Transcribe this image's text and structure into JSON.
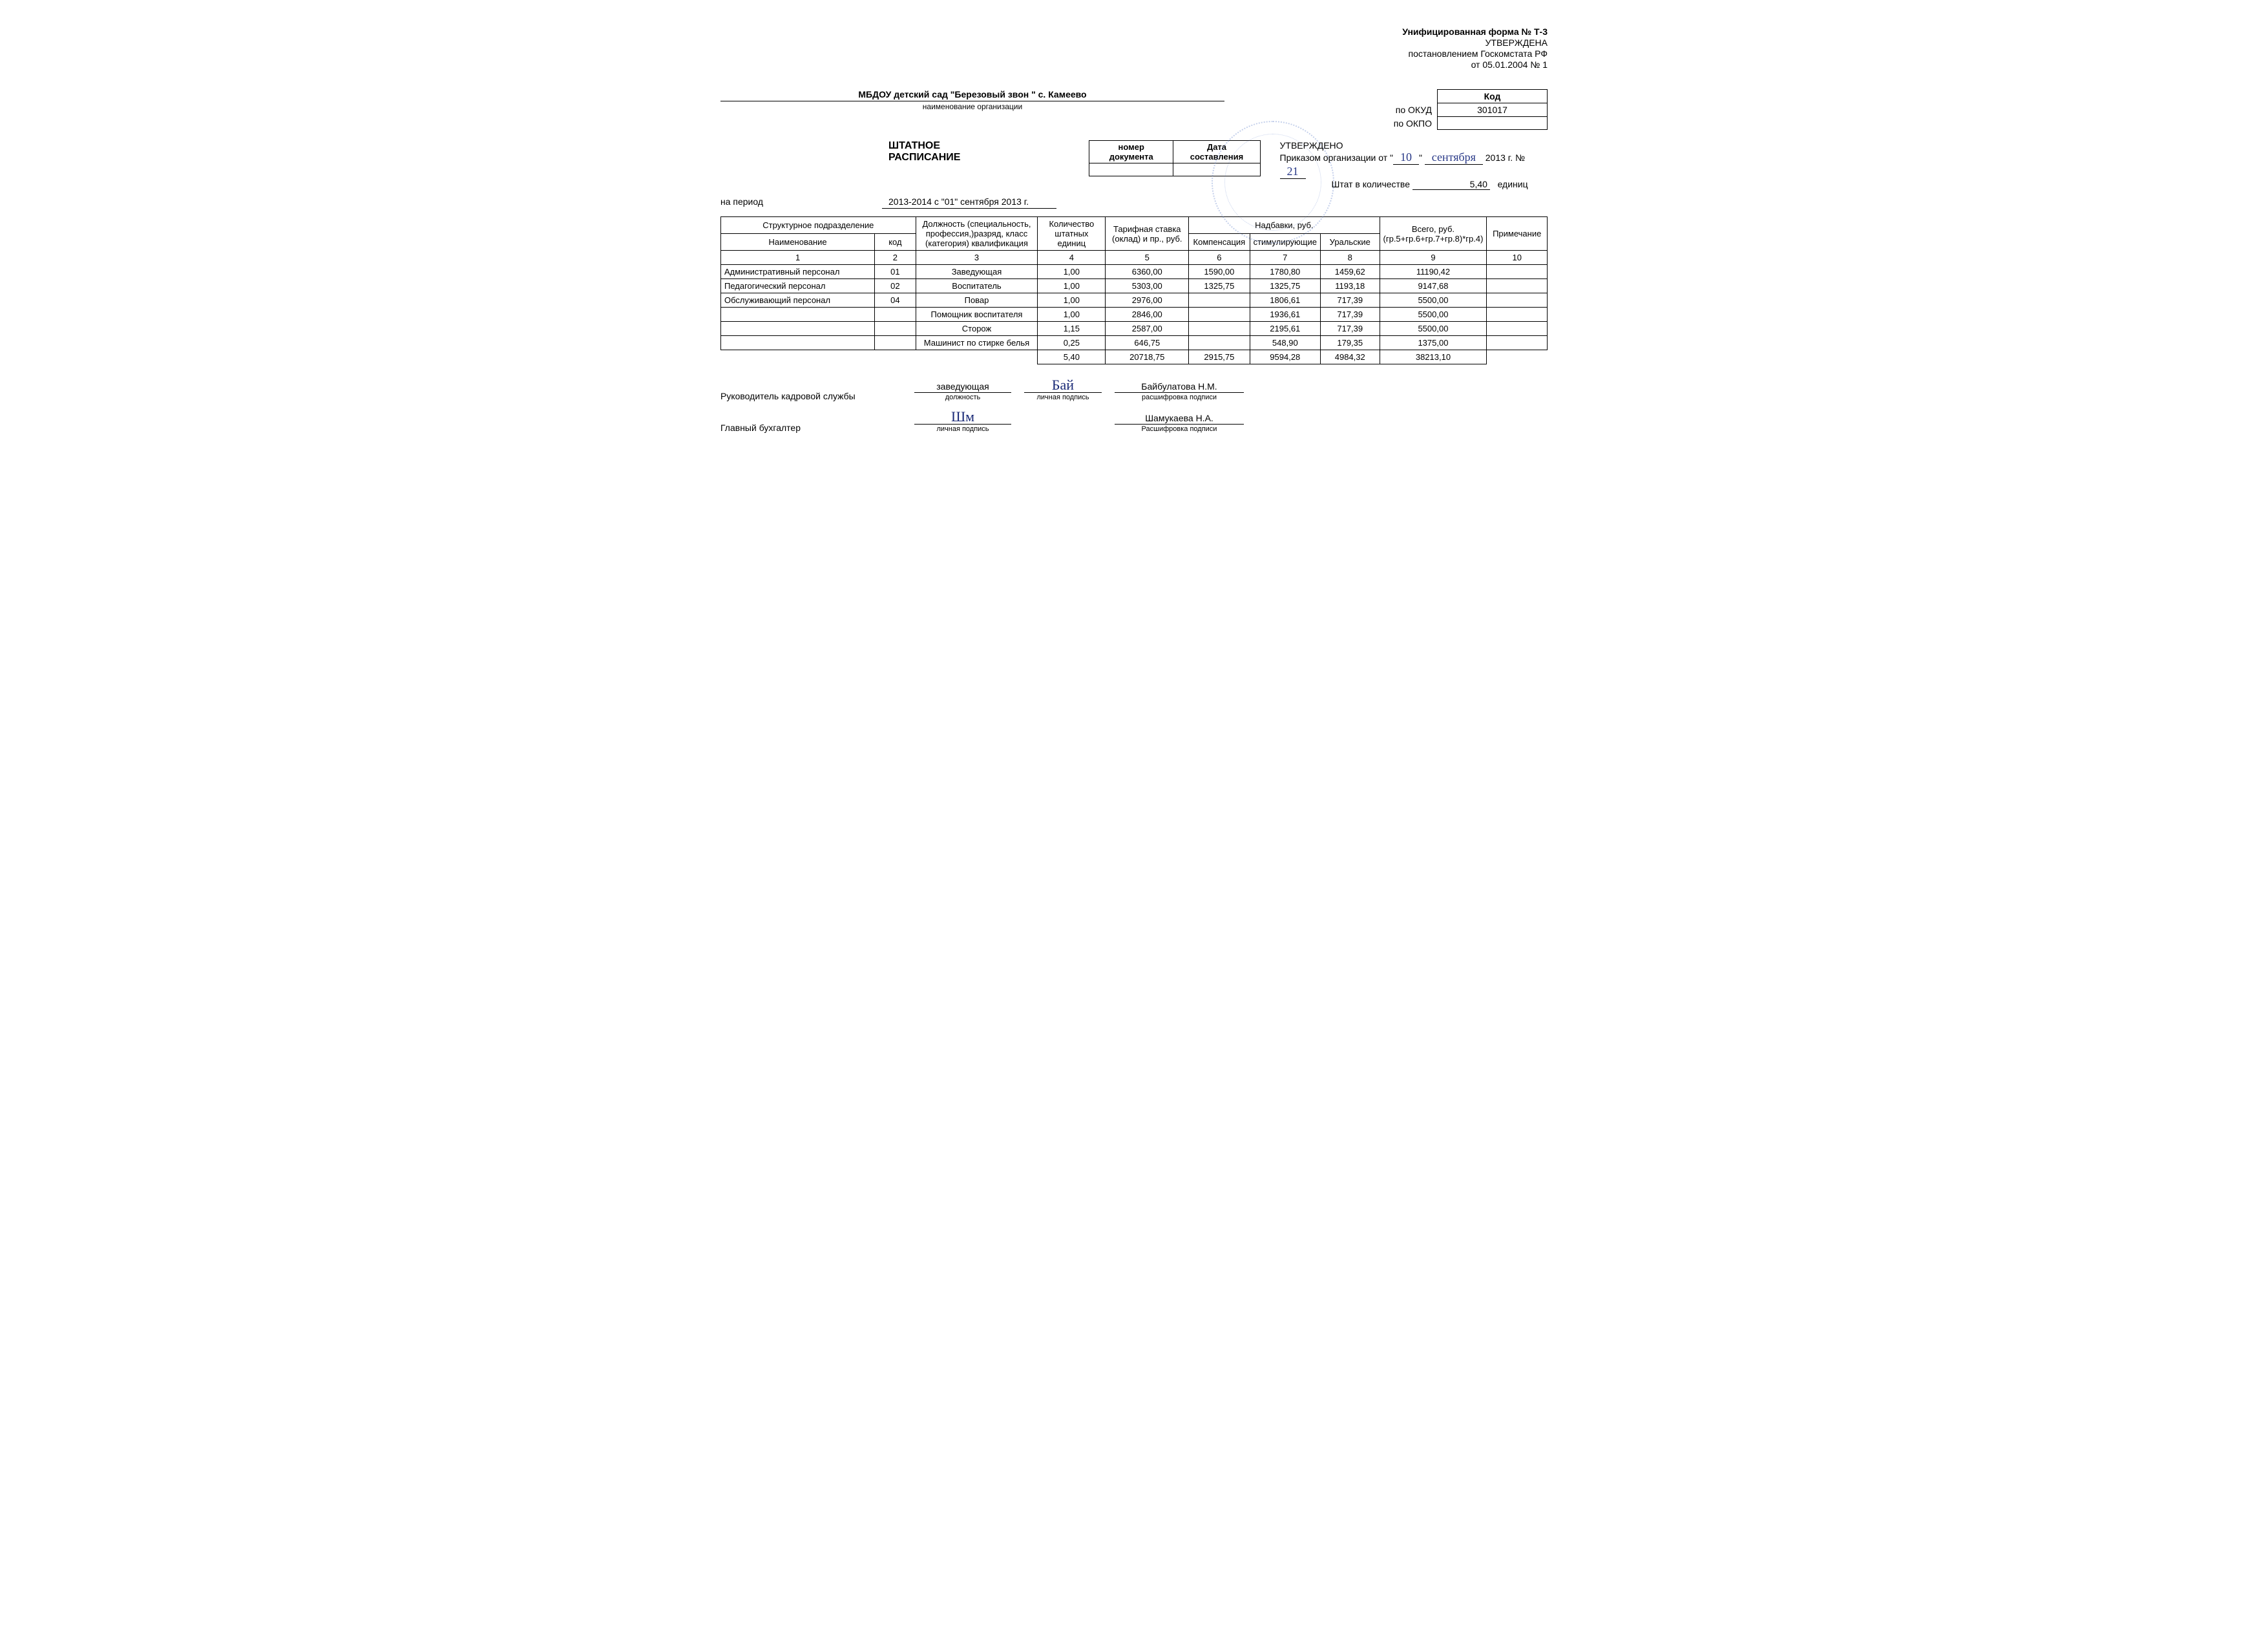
{
  "form_header": {
    "title": "Унифицированная форма № Т-3",
    "approved": "УТВЕРЖДЕНА",
    "decree": "постановлением Госкомстата РФ",
    "date": "от 05.01.2004 № 1"
  },
  "codes": {
    "header": "Код",
    "okud_label": "по ОКУД",
    "okud_value": "301017",
    "okpo_label": "по ОКПО",
    "okpo_value": ""
  },
  "organization": {
    "name": "МБДОУ детский сад  \"Березовый звон \" с. Камеево",
    "caption": "наименование организации"
  },
  "document": {
    "title": "ШТАТНОЕ РАСПИСАНИЕ",
    "meta_headers": {
      "num": "номер документа",
      "date": "Дата составления"
    },
    "meta_values": {
      "num": "",
      "date": ""
    }
  },
  "approval": {
    "approved": "УТВЕРЖДЕНО",
    "order_prefix": "Приказом организации от \"",
    "order_day": "10",
    "order_mid": "\" ",
    "order_month": "сентября",
    "order_year": " 2013 г.   №",
    "order_no": "21",
    "staff_prefix": "Штат в количестве",
    "staff_qty": "5,40",
    "staff_suffix": "единиц"
  },
  "period": {
    "label": "на период",
    "value": "2013-2014  с \"01\" сентября 2013 г."
  },
  "table": {
    "headers": {
      "struct": "Структурное подразделение",
      "name": "Наименование",
      "code": "код",
      "position": "Должность (специальность, профессия,)разряд, класс (категория) квалификация",
      "qty": "Количество штатных единиц",
      "rate": "Тарифная ставка (оклад) и пр., руб.",
      "allow": "Надбавки, руб.",
      "comp": "Компенсация",
      "stim": "стимулирующие",
      "ural": "Уральские",
      "total": "Всего, руб. (гр.5+гр.6+гр.7+гр.8)*гр.4)",
      "note": "Примечание"
    },
    "colnums": [
      "1",
      "2",
      "3",
      "4",
      "5",
      "6",
      "7",
      "8",
      "9",
      "10"
    ],
    "rows": [
      {
        "name": "Административный персонал",
        "code": "01",
        "pos": "Заведующая",
        "qty": "1,00",
        "rate": "6360,00",
        "comp": "1590,00",
        "stim": "1780,80",
        "ural": "1459,62",
        "total": "11190,42",
        "note": ""
      },
      {
        "name": "Педагогический персонал",
        "code": "02",
        "pos": "Воспитатель",
        "qty": "1,00",
        "rate": "5303,00",
        "comp": "1325,75",
        "stim": "1325,75",
        "ural": "1193,18",
        "total": "9147,68",
        "note": ""
      },
      {
        "name": "Обслуживающий персонал",
        "code": "04",
        "pos": "Повар",
        "qty": "1,00",
        "rate": "2976,00",
        "comp": "",
        "stim": "1806,61",
        "ural": "717,39",
        "total": "5500,00",
        "note": ""
      },
      {
        "name": "",
        "code": "",
        "pos": "Помощник воспитателя",
        "qty": "1,00",
        "rate": "2846,00",
        "comp": "",
        "stim": "1936,61",
        "ural": "717,39",
        "total": "5500,00",
        "note": ""
      },
      {
        "name": "",
        "code": "",
        "pos": "Сторож",
        "qty": "1,15",
        "rate": "2587,00",
        "comp": "",
        "stim": "2195,61",
        "ural": "717,39",
        "total": "5500,00",
        "note": ""
      },
      {
        "name": "",
        "code": "",
        "pos": "Машинист по стирке белья",
        "qty": "0,25",
        "rate": "646,75",
        "comp": "",
        "stim": "548,90",
        "ural": "179,35",
        "total": "1375,00",
        "note": ""
      }
    ],
    "totals": {
      "qty": "5,40",
      "rate": "20718,75",
      "comp": "2915,75",
      "stim": "9594,28",
      "ural": "4984,32",
      "total": "38213,10"
    }
  },
  "signatures": {
    "hr": {
      "label": "Руководитель кадровой службы",
      "position": "заведующая",
      "position_caption": "должность",
      "sig_caption": "личная подпись",
      "name": "Байбулатова Н.М.",
      "name_caption": "расшифровка подписи",
      "sig_mark": "Бай"
    },
    "acc": {
      "label": "Главный бухгалтер",
      "sig_caption": "личная подпись",
      "name": "Шамукаева Н.А.",
      "name_caption": "Расшифровка подписи",
      "sig_mark": "Шм"
    }
  },
  "style": {
    "text_color": "#000000",
    "bg_color": "#ffffff",
    "border_color": "#000000",
    "hand_color": "#2a3a88",
    "stamp_color": "#5a7ac7",
    "base_fontsize": 14,
    "table_fontsize": 13
  }
}
